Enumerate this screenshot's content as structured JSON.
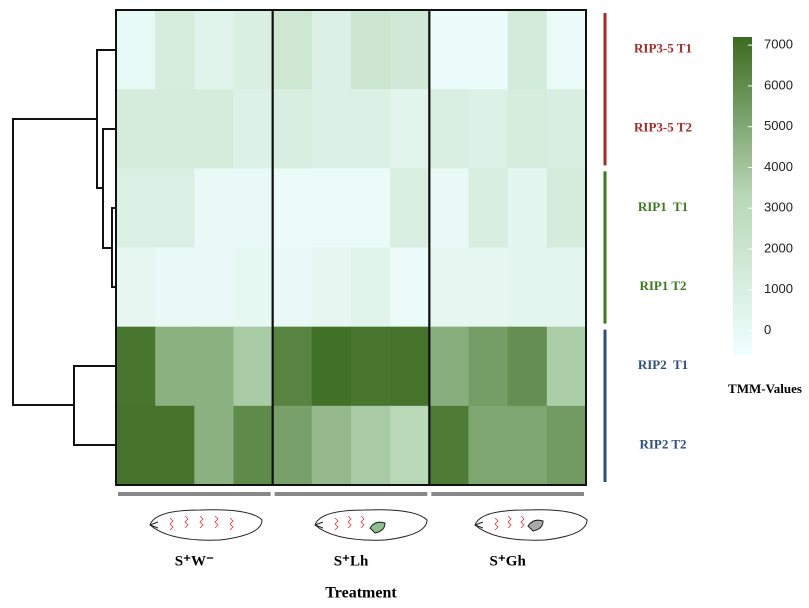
{
  "chart_data": {
    "type": "heatmap",
    "xlabel": "Treatment",
    "categories": [
      null,
      null,
      null,
      null,
      null,
      null,
      null,
      null,
      null,
      null,
      null,
      null
    ],
    "groups": [
      "S⁺W⁻",
      "S⁺Lh",
      "S⁺Gh"
    ],
    "rows": [
      {
        "name": "RIP3-5 T1",
        "color": "#a52a2a"
      },
      {
        "name": "RIP3-5 T2",
        "color": "#a52a2a"
      },
      {
        "name": "RIP1  T1",
        "color": "#3b7a1e"
      },
      {
        "name": "RIP1 T2",
        "color": "#3b7a1e"
      },
      {
        "name": "RIP2  T1",
        "color": "#2e4e7e"
      },
      {
        "name": "RIP2 T2",
        "color": "#2e4e7e"
      }
    ],
    "values": [
      [
        0,
        1200,
        500,
        1000,
        1800,
        800,
        1900,
        1600,
        -300,
        -300,
        1400,
        -200
      ],
      [
        1300,
        1300,
        1300,
        700,
        1100,
        800,
        800,
        400,
        1000,
        700,
        1200,
        1100
      ],
      [
        900,
        900,
        -100,
        -100,
        -200,
        -200,
        -200,
        1000,
        -100,
        1100,
        300,
        1300
      ],
      [
        200,
        -100,
        -100,
        100,
        -100,
        200,
        500,
        -200,
        200,
        200,
        300,
        300
      ],
      [
        6800,
        4700,
        4700,
        3800,
        6300,
        7000,
        6800,
        6900,
        4800,
        5400,
        5900,
        3700
      ],
      [
        6900,
        6900,
        4700,
        6100,
        5300,
        4400,
        3800,
        3300,
        6600,
        5100,
        5100,
        5500
      ]
    ],
    "colormap": [
      "#f0ffff",
      "#b8d8b8",
      "#3b6b1f"
    ],
    "colorbar": {
      "title": "TMM-Values",
      "lim": [
        -600,
        7200
      ],
      "ticks": [
        0,
        1000,
        2000,
        3000,
        4000,
        5000,
        6000,
        7000
      ]
    }
  }
}
